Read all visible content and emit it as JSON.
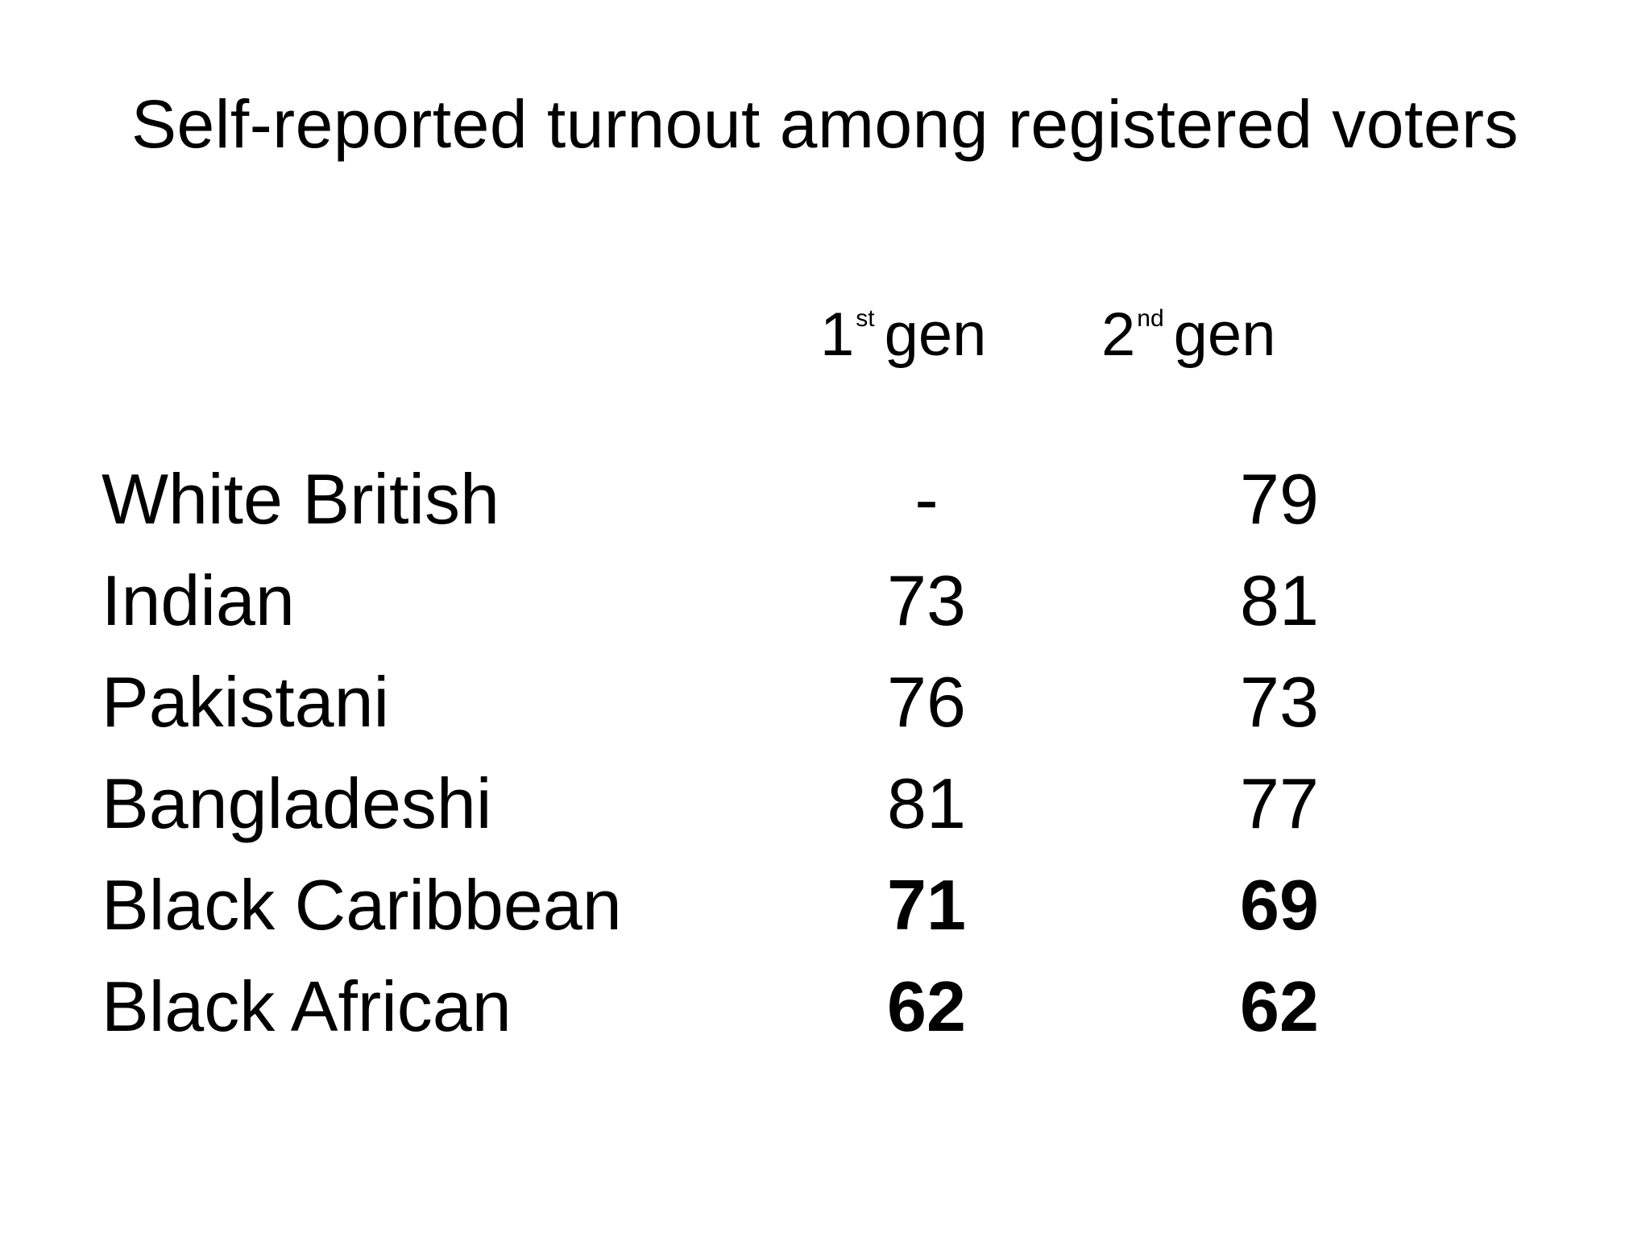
{
  "title": "Self-reported turnout among registered voters",
  "columns": [
    {
      "base": "1",
      "superscript": "st",
      "suffix": "gen"
    },
    {
      "base": "2",
      "superscript": "nd",
      "suffix": "gen"
    }
  ],
  "rows": [
    {
      "group": "White British",
      "gen1": "-",
      "gen2": "79",
      "bold": false
    },
    {
      "group": "Indian",
      "gen1": "73",
      "gen2": "81",
      "bold": false
    },
    {
      "group": "Pakistani",
      "gen1": "76",
      "gen2": "73",
      "bold": false
    },
    {
      "group": "Bangladeshi",
      "gen1": "81",
      "gen2": "77",
      "bold": false
    },
    {
      "group": "Black Caribbean",
      "gen1": "71",
      "gen2": "69",
      "bold": true
    },
    {
      "group": "Black African",
      "gen1": "62",
      "gen2": "62",
      "bold": true
    }
  ]
}
